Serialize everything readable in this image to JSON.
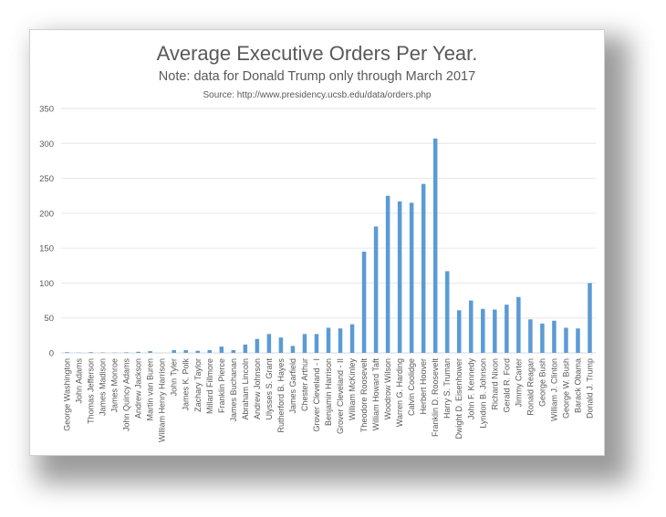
{
  "chart_data": {
    "type": "bar",
    "title": "Average Executive Orders Per Year.",
    "subtitle": "Note: data for Donald Trump only through March 2017",
    "source": "Source: http://www.presidency.ucsb.edu/data/orders.php",
    "xlabel": "",
    "ylabel": "",
    "ylim": [
      0,
      350
    ],
    "yticks": [
      0,
      50,
      100,
      150,
      200,
      250,
      300,
      350
    ],
    "grid": true,
    "legend": "none",
    "bar_color": "#5b9bd5",
    "categories": [
      "George Washington",
      "John Adams",
      "Thomas Jefferson",
      "James Madison",
      "James Monroe",
      "John Quincy Adams",
      "Andrew Jackson",
      "Martin van Buren",
      "William Henry Harrison",
      "John Tyler",
      "James K. Polk",
      "Zachary Taylor",
      "Millard Fillmore",
      "Franklin Pierce",
      "James Buchanan",
      "Abraham Lincoln",
      "Andrew Johnson",
      "Ulysses S. Grant",
      "Rutherford B. Hayes",
      "James Garfield",
      "Chester Arthur",
      "Grover Cleveland - I",
      "Benjamin Harrison",
      "Grover Cleveland - II",
      "William McKinley",
      "Theodore Roosevelt",
      "William Howard Taft",
      "Woodrow Wilson",
      "Warren G. Harding",
      "Calvin Coolidge",
      "Herbert Hoover",
      "Franklin D. Roosevelt",
      "Harry S. Truman",
      "Dwight D. Eisenhower",
      "John F. Kennedy",
      "Lyndon B. Johnson",
      "Richard Nixon",
      "Gerald R. Ford",
      "Jimmy Carter",
      "Ronald Reagan",
      "George Bush",
      "William J. Clinton",
      "George W. Bush",
      "Barack Obama",
      "Donald J. Trump"
    ],
    "values": [
      1,
      0.3,
      1,
      0.6,
      0.3,
      0.8,
      1.5,
      2.5,
      0,
      4,
      4,
      3,
      4,
      9,
      4,
      12,
      20,
      27,
      22,
      10,
      27,
      27,
      36,
      35,
      41,
      145,
      181,
      225,
      217,
      215,
      242,
      307,
      117,
      61,
      75,
      63,
      62,
      69,
      80,
      48,
      42,
      46,
      36,
      35,
      100
    ]
  }
}
